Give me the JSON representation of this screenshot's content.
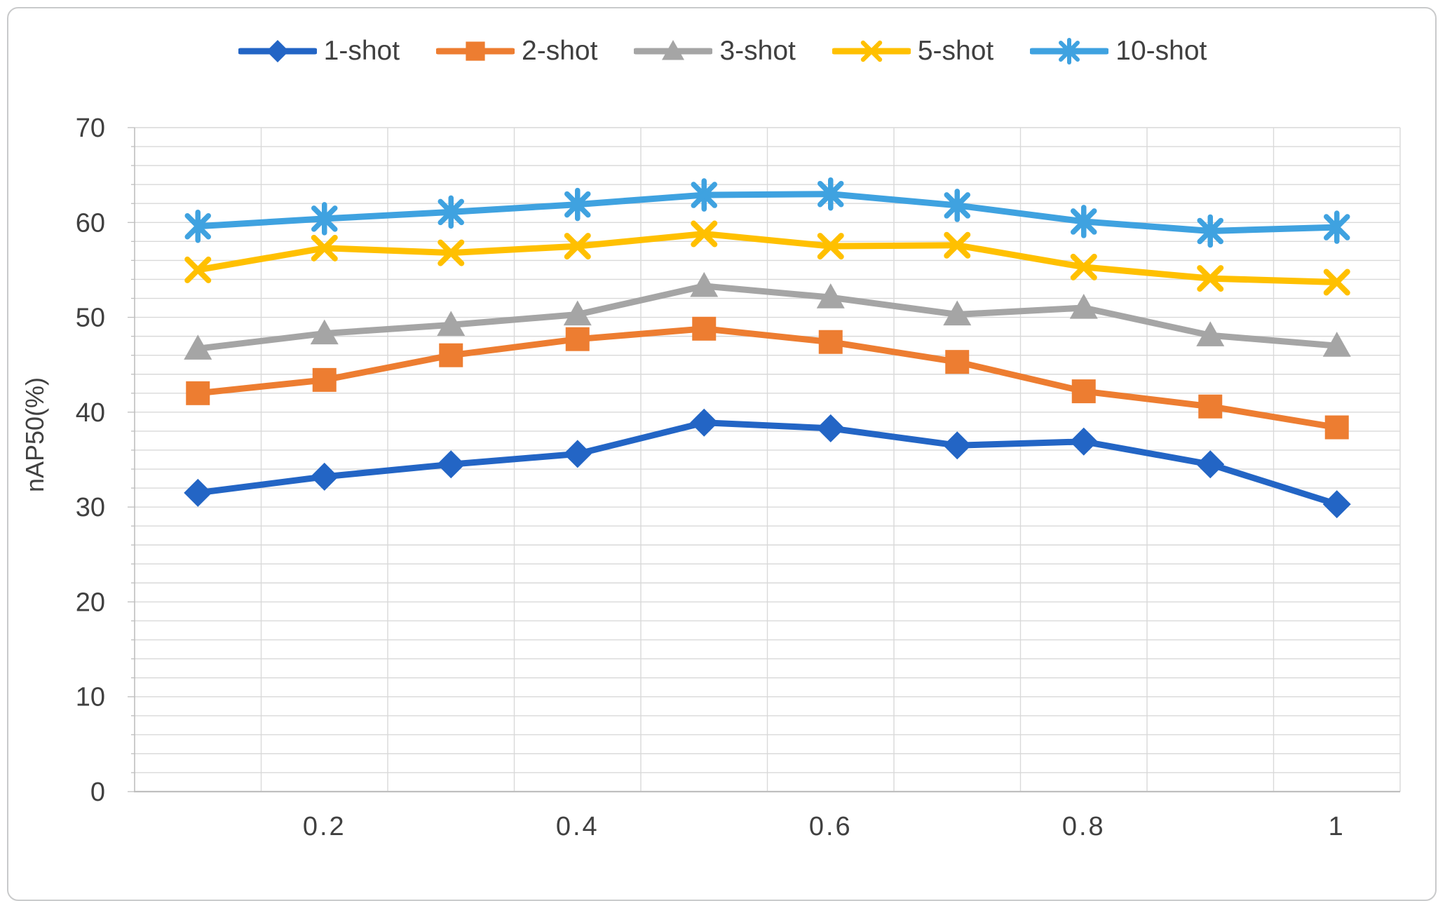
{
  "page": {
    "background": "#FFFFFF",
    "border_color": "#C9CACB"
  },
  "chart_data": {
    "type": "line",
    "title": "",
    "xlabel": "",
    "ylabel": "nAP50(%)",
    "x": [
      0.1,
      0.2,
      0.3,
      0.4,
      0.5,
      0.6,
      0.7,
      0.8,
      0.9,
      1.0
    ],
    "x_tick_labels": [
      "0.2",
      "0.4",
      "0.6",
      "0.8",
      "1"
    ],
    "x_ticks_at": [
      0.2,
      0.4,
      0.6,
      0.8,
      1.0
    ],
    "ylim": [
      0,
      70
    ],
    "y_major_step": 10,
    "y_minor_step": 2,
    "grid": true,
    "legend_position": "top",
    "axis_text_color": "#404040",
    "gridline_color": "#D9D9D9",
    "axis_line_color": "#BFBFBF",
    "series": [
      {
        "name": "1-shot",
        "marker": "diamond",
        "color": "#2365C5",
        "values": [
          31.5,
          33.2,
          34.5,
          35.6,
          38.9,
          38.3,
          36.5,
          36.9,
          34.5,
          30.3
        ]
      },
      {
        "name": "2-shot",
        "marker": "square",
        "color": "#ED7D31",
        "values": [
          42.0,
          43.4,
          46.0,
          47.7,
          48.8,
          47.4,
          45.3,
          42.2,
          40.6,
          38.4
        ]
      },
      {
        "name": "3-shot",
        "marker": "triangle",
        "color": "#A5A5A5",
        "values": [
          46.7,
          48.3,
          49.2,
          50.3,
          53.3,
          52.1,
          50.3,
          51.0,
          48.1,
          47.0
        ]
      },
      {
        "name": "5-shot",
        "marker": "x",
        "color": "#FFC000",
        "values": [
          55.0,
          57.3,
          56.8,
          57.5,
          58.8,
          57.5,
          57.6,
          55.3,
          54.1,
          53.7
        ]
      },
      {
        "name": "10-shot",
        "marker": "asterisk",
        "color": "#3FA2E0",
        "values": [
          59.6,
          60.4,
          61.1,
          61.9,
          62.9,
          63.0,
          61.8,
          60.1,
          59.1,
          59.5
        ]
      }
    ]
  }
}
